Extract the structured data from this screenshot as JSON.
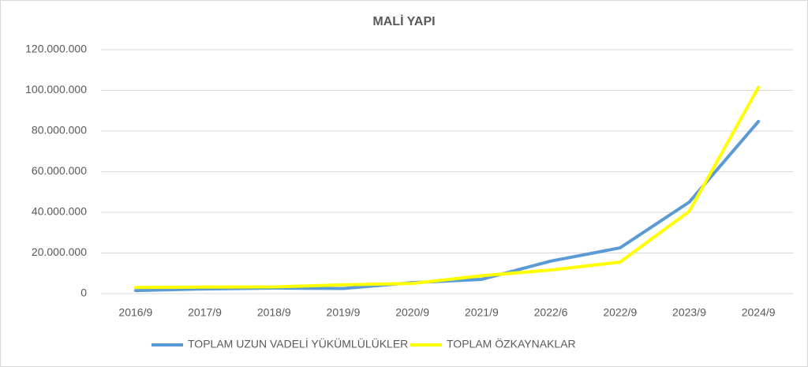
{
  "chart_data": {
    "type": "line",
    "title": "MALİ YAPI",
    "categories": [
      "2016/9",
      "2017/9",
      "2018/9",
      "2019/9",
      "2020/9",
      "2021/9",
      "2022/6",
      "2022/9",
      "2023/9",
      "2024/9"
    ],
    "series": [
      {
        "name": "TOPLAM UZUN VADELİ YÜKÜMLÜLÜKLER",
        "color": "#5b9bd5",
        "values": [
          1500000,
          2300000,
          2700000,
          2500000,
          5400000,
          7000000,
          16000000,
          22500000,
          45000000,
          84700000
        ]
      },
      {
        "name": "TOPLAM ÖZKAYNAKLAR",
        "color": "#ffff00",
        "values": [
          3000000,
          3200000,
          3300000,
          4300000,
          5000000,
          8800000,
          11600000,
          15500000,
          40500000,
          101500000
        ]
      }
    ],
    "ylim": [
      0,
      120000000
    ],
    "yticks": [
      0,
      {
        "value": 20000000,
        "label": "20.000.000"
      },
      {
        "value": 40000000,
        "label": "40.000.000"
      },
      {
        "value": 60000000,
        "label": "60.000.000"
      },
      {
        "value": 80000000,
        "label": "80.000.000"
      },
      {
        "value": 100000000,
        "label": "100.000.000"
      },
      {
        "value": 120000000,
        "label": "120.000.000"
      }
    ],
    "grid": true,
    "legend": "bottom"
  }
}
